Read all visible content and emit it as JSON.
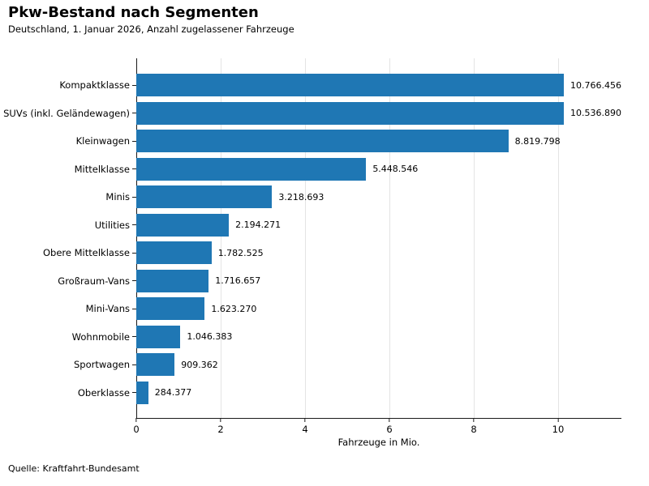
{
  "header": {
    "title": "Pkw-Bestand nach Segmenten",
    "subtitle": "Deutschland, 1. Januar 2026, Anzahl zugelassener Fahrzeuge"
  },
  "footer": {
    "source": "Quelle: Kraftfahrt-Bundesamt"
  },
  "chart_data": {
    "type": "bar",
    "orientation": "horizontal",
    "title": "Pkw-Bestand nach Segmenten",
    "subtitle": "Deutschland, 1. Januar 2026, Anzahl zugelassener Fahrzeuge",
    "categories": [
      "Kompaktklasse",
      "SUVs (inkl. Geländewagen)",
      "Kleinwagen",
      "Mittelklasse",
      "Minis",
      "Utilities",
      "Obere Mittelklasse",
      "Großraum-Vans",
      "Mini-Vans",
      "Wohnmobile",
      "Sportwagen",
      "Oberklasse"
    ],
    "values": [
      10766456,
      10536890,
      8819798,
      5448546,
      3218693,
      2194271,
      1782525,
      1716657,
      1623270,
      1046383,
      909362,
      284377
    ],
    "value_labels": [
      "10.766.456",
      "10.536.890",
      "8.819.798",
      "5.448.546",
      "3.218.693",
      "2.194.271",
      "1.782.525",
      "1.716.657",
      "1.623.270",
      "1.046.383",
      "909.362",
      "284.377"
    ],
    "xlabel": "Fahrzeuge in Mio.",
    "ylabel": "",
    "xticks": [
      0,
      2,
      4,
      6,
      8,
      10
    ],
    "xlim": [
      0,
      11.5
    ],
    "unit_divisor": 1000000,
    "bar_color": "#1f77b4",
    "grid": "vertical",
    "gridline_color": "#e4e4e4",
    "legend": "none",
    "sort": "descending"
  }
}
